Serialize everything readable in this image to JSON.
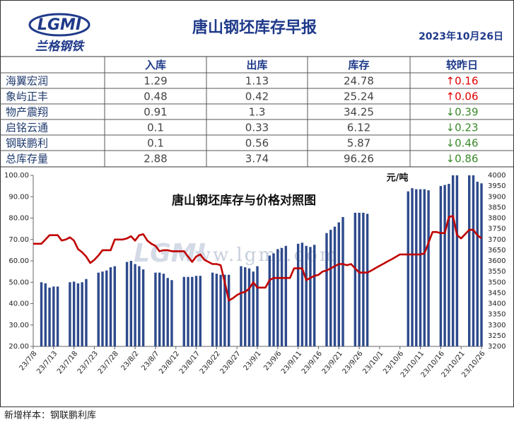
{
  "header": {
    "logo": "LGMI",
    "brand": "兰格钢铁",
    "title": "唐山钢坯库存早报",
    "date": "2023年10月26日"
  },
  "table": {
    "columns": [
      "入库",
      "出库",
      "库存",
      "较昨日"
    ],
    "rows": [
      {
        "name": "海翼宏润",
        "in": 1.29,
        "out": 1.13,
        "stock": 24.78,
        "change": "↑0.16",
        "change_color": "#e00000"
      },
      {
        "name": "象屿正丰",
        "in": 0.48,
        "out": 0.42,
        "stock": 25.24,
        "change": "↑0.06",
        "change_color": "#e00000"
      },
      {
        "name": "物产震翔",
        "in": 0.91,
        "out": 1.3,
        "stock": 34.25,
        "change": "↓0.39",
        "change_color": "#3a8a2a"
      },
      {
        "name": "启铭云通",
        "in": 0.1,
        "out": 0.33,
        "stock": 6.12,
        "change": "↓0.23",
        "change_color": "#3a8a2a"
      },
      {
        "name": "钢联鹏利",
        "in": 0.1,
        "out": 0.56,
        "stock": 5.87,
        "change": "↓0.46",
        "change_color": "#3a8a2a"
      },
      {
        "name": "总库存量",
        "in": 2.88,
        "out": 3.74,
        "stock": 96.26,
        "change": "↓0.86",
        "change_color": "#3a8a2a"
      }
    ]
  },
  "chart_data": {
    "type": "bar_line",
    "title": "唐山钢坯库存与价格对照图",
    "y2_label": "元/吨",
    "watermark": "www.lgmi.com",
    "categories": [
      "23/7/8",
      null,
      null,
      null,
      null,
      "23/7/13",
      null,
      null,
      null,
      null,
      "23/7/18",
      null,
      null,
      null,
      null,
      "23/7/23",
      null,
      null,
      null,
      null,
      "23/7/28",
      null,
      null,
      null,
      null,
      "23/8/2",
      null,
      null,
      null,
      null,
      "23/8/7",
      null,
      null,
      null,
      null,
      "23/8/12",
      null,
      null,
      null,
      null,
      "23/8/17",
      null,
      null,
      null,
      null,
      "23/8/22",
      null,
      null,
      null,
      null,
      "23/8/27",
      null,
      null,
      null,
      null,
      "23/9/1",
      null,
      null,
      null,
      null,
      "23/9/6",
      null,
      null,
      null,
      null,
      "23/9/11",
      null,
      null,
      null,
      null,
      "23/9/16",
      null,
      null,
      null,
      null,
      "23/9/21",
      null,
      null,
      null,
      null,
      "23/9/26",
      null,
      null,
      null,
      null,
      "23/10/1",
      null,
      null,
      null,
      null,
      "23/10/6",
      null,
      null,
      null,
      null,
      "23/10/11",
      null,
      null,
      null,
      null,
      "23/10/16",
      null,
      null,
      null,
      null,
      "23/10/21",
      null,
      null,
      null,
      null,
      "23/10/26"
    ],
    "series": [
      {
        "type": "bar",
        "color": "#2e4a8c",
        "values": [
          null,
          null,
          50,
          49.5,
          47.5,
          48,
          48,
          null,
          null,
          50,
          50.3,
          49.5,
          50,
          51.5,
          null,
          null,
          54.5,
          55,
          55.5,
          57,
          57.5,
          null,
          null,
          59.5,
          60,
          58.5,
          57.5,
          56,
          null,
          null,
          54.5,
          54.5,
          54,
          52,
          51,
          null,
          null,
          52.5,
          52.5,
          52.5,
          53,
          53,
          null,
          null,
          54.5,
          54,
          53.5,
          53.5,
          53.5,
          null,
          null,
          57.5,
          57,
          56.5,
          55,
          57.5,
          null,
          null,
          62.5,
          63.5,
          65.5,
          66,
          67,
          null,
          null,
          68,
          68.5,
          67,
          66.5,
          67.5,
          null,
          null,
          73,
          74.5,
          76,
          78,
          80.5,
          null,
          null,
          82.5,
          82.5,
          82.5,
          82,
          null,
          null,
          null,
          null,
          null,
          null,
          null,
          null,
          null,
          92.5,
          94,
          93.5,
          93.5,
          93.5,
          93,
          null,
          null,
          95,
          95.5,
          96,
          100,
          100,
          null,
          null,
          100,
          100,
          97,
          96.26
        ]
      },
      {
        "type": "line",
        "axis": "y2",
        "color": "#c00000",
        "values": [
          3680,
          3680,
          3680,
          3700,
          3720,
          3720,
          3720,
          3695,
          3700,
          3710,
          3695,
          3655,
          3640,
          3620,
          3590,
          3605,
          3625,
          3650,
          3650,
          3650,
          3700,
          3700,
          3700,
          3705,
          3715,
          3695,
          3720,
          3725,
          3695,
          3680,
          3670,
          3645,
          3650,
          3650,
          3645,
          3645,
          3645,
          3645,
          3620,
          3595,
          3620,
          3630,
          3605,
          3595,
          3585,
          3585,
          3580,
          3500,
          3415,
          3425,
          3440,
          3450,
          3455,
          3470,
          3500,
          3475,
          3475,
          3475,
          3510,
          3520,
          3520,
          3520,
          3520,
          3520,
          3565,
          3565,
          3565,
          3510,
          3520,
          3530,
          3535,
          3550,
          3555,
          3565,
          3575,
          3585,
          3585,
          3580,
          3585,
          3565,
          3545,
          3545,
          3545,
          3555,
          3566,
          3577,
          3587,
          3598,
          3608,
          3619,
          3630,
          3630,
          3630,
          3630,
          3630,
          3630,
          3635,
          3685,
          3735,
          3735,
          3730,
          3730,
          3805,
          3810,
          3720,
          3705,
          3725,
          3745,
          3745,
          3720,
          3705
        ]
      }
    ],
    "ylim": [
      20,
      100
    ],
    "yticks": [
      {
        "value": 20,
        "label": "20.00"
      },
      {
        "value": 30,
        "label": "30.00"
      },
      {
        "value": 40,
        "label": "40.00"
      },
      {
        "value": 50,
        "label": "50.00"
      },
      {
        "value": 60,
        "label": "60.00"
      },
      {
        "value": 70,
        "label": "70.00"
      },
      {
        "value": 80,
        "label": "80.00"
      },
      {
        "value": 90,
        "label": "90.00"
      },
      {
        "value": 100,
        "label": "100.00"
      }
    ],
    "y2lim": [
      3200,
      4000
    ],
    "y2ticks": [
      3200,
      3250,
      3300,
      3350,
      3400,
      3450,
      3500,
      3550,
      3600,
      3650,
      3700,
      3750,
      3800,
      3850,
      3900,
      3950,
      4000
    ],
    "grid": false
  },
  "footer": "新增样本：钢联鹏利库"
}
